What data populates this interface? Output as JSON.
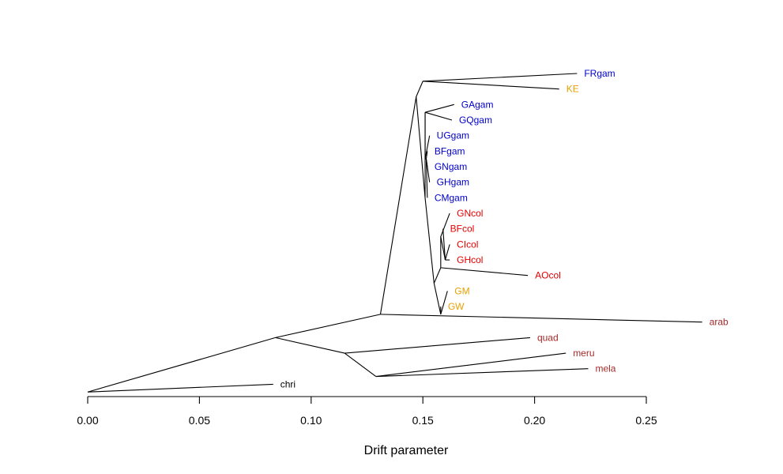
{
  "chart_data": {
    "type": "tree",
    "xlabel": "Drift parameter",
    "xlim": [
      0,
      0.25
    ],
    "xticks": [
      "0.00",
      "0.05",
      "0.10",
      "0.15",
      "0.20",
      "0.25"
    ],
    "tick_values": [
      0,
      0.05,
      0.1,
      0.15,
      0.2,
      0.25
    ],
    "colors": {
      "gambiae": "#0000cd",
      "coluzzii": "#e60000",
      "hybrid": "#e8a000",
      "outgroup": "#a52a2a",
      "root": "#000000"
    },
    "nodes": [
      {
        "id": "n_root",
        "x": 0.0,
        "row": 20.5
      },
      {
        "id": "n_b",
        "x": 0.084,
        "row": 17.0
      },
      {
        "id": "n_out1",
        "x": 0.115,
        "row": 18.0
      },
      {
        "id": "n_out2",
        "x": 0.129,
        "row": 19.5
      },
      {
        "id": "n_c",
        "x": 0.131,
        "row": 15.5
      },
      {
        "id": "n_d",
        "x": 0.147,
        "row": 1.5
      },
      {
        "id": "n_e",
        "x": 0.15,
        "row": 0.5
      },
      {
        "id": "n_f",
        "x": 0.151,
        "row": 8.0
      },
      {
        "id": "n_g",
        "x": 0.151,
        "row": 2.5
      },
      {
        "id": "n_g1",
        "x": 0.151,
        "row": 5.5
      },
      {
        "id": "n_gga",
        "x": 0.1515,
        "row": 5.5
      },
      {
        "id": "n_h",
        "x": 0.155,
        "row": 13.5
      },
      {
        "id": "n_hyb",
        "x": 0.158,
        "row": 15.5
      },
      {
        "id": "n_col",
        "x": 0.158,
        "row": 12.5
      },
      {
        "id": "n_col2",
        "x": 0.158,
        "row": 10.5
      },
      {
        "id": "n_col3",
        "x": 0.16,
        "row": 12.0
      }
    ],
    "edges": [
      {
        "from": "n_root",
        "to": "n_b"
      },
      {
        "from": "n_root",
        "to": "chri"
      },
      {
        "from": "n_b",
        "to": "n_c"
      },
      {
        "from": "n_b",
        "to": "n_out1"
      },
      {
        "from": "n_out1",
        "to": "quad"
      },
      {
        "from": "n_out1",
        "to": "n_out2"
      },
      {
        "from": "n_out2",
        "to": "meru"
      },
      {
        "from": "n_out2",
        "to": "mela"
      },
      {
        "from": "n_c",
        "to": "arab"
      },
      {
        "from": "n_c",
        "to": "n_d"
      },
      {
        "from": "n_d",
        "to": "n_e"
      },
      {
        "from": "n_e",
        "to": "FRgam"
      },
      {
        "from": "n_e",
        "to": "KE"
      },
      {
        "from": "n_d",
        "to": "n_f"
      },
      {
        "from": "n_f",
        "to": "n_g"
      },
      {
        "from": "n_g",
        "to": "GAgam"
      },
      {
        "from": "n_g",
        "to": "GQgam"
      },
      {
        "from": "n_g",
        "to": "n_g1"
      },
      {
        "from": "n_g1",
        "to": "UGgam"
      },
      {
        "from": "n_g1",
        "to": "n_gga"
      },
      {
        "from": "n_gga",
        "to": "BFgam"
      },
      {
        "from": "n_gga",
        "to": "GNgam"
      },
      {
        "from": "n_gga",
        "to": "GHgam"
      },
      {
        "from": "n_gga",
        "to": "CMgam"
      },
      {
        "from": "n_f",
        "to": "n_h"
      },
      {
        "from": "n_h",
        "to": "n_hyb"
      },
      {
        "from": "n_hyb",
        "to": "GM"
      },
      {
        "from": "n_hyb",
        "to": "GW"
      },
      {
        "from": "n_h",
        "to": "n_col"
      },
      {
        "from": "n_col",
        "to": "AOcol"
      },
      {
        "from": "n_col",
        "to": "n_col2"
      },
      {
        "from": "n_col2",
        "to": "GNcol"
      },
      {
        "from": "n_col2",
        "to": "n_col3"
      },
      {
        "from": "n_col3",
        "to": "BFcol"
      },
      {
        "from": "n_col3",
        "to": "CIcol"
      },
      {
        "from": "n_col3",
        "to": "GHcol"
      }
    ],
    "tips": [
      {
        "id": "FRgam",
        "label": "FRgam",
        "x": 0.219,
        "row": 0,
        "group": "gambiae"
      },
      {
        "id": "KE",
        "label": "KE",
        "x": 0.211,
        "row": 1,
        "group": "hybrid"
      },
      {
        "id": "GAgam",
        "label": "GAgam",
        "x": 0.164,
        "row": 2,
        "group": "gambiae"
      },
      {
        "id": "GQgam",
        "label": "GQgam",
        "x": 0.163,
        "row": 3,
        "group": "gambiae"
      },
      {
        "id": "UGgam",
        "label": "UGgam",
        "x": 0.153,
        "row": 4,
        "group": "gambiae"
      },
      {
        "id": "BFgam",
        "label": "BFgam",
        "x": 0.152,
        "row": 5,
        "group": "gambiae"
      },
      {
        "id": "GNgam",
        "label": "GNgam",
        "x": 0.152,
        "row": 6,
        "group": "gambiae"
      },
      {
        "id": "GHgam",
        "label": "GHgam",
        "x": 0.153,
        "row": 7,
        "group": "gambiae"
      },
      {
        "id": "CMgam",
        "label": "CMgam",
        "x": 0.152,
        "row": 8,
        "group": "gambiae"
      },
      {
        "id": "GNcol",
        "label": "GNcol",
        "x": 0.162,
        "row": 9,
        "group": "coluzzii"
      },
      {
        "id": "BFcol",
        "label": "BFcol",
        "x": 0.159,
        "row": 10,
        "group": "coluzzii"
      },
      {
        "id": "CIcol",
        "label": "CIcol",
        "x": 0.162,
        "row": 11,
        "group": "coluzzii"
      },
      {
        "id": "GHcol",
        "label": "GHcol",
        "x": 0.162,
        "row": 12,
        "group": "coluzzii"
      },
      {
        "id": "AOcol",
        "label": "AOcol",
        "x": 0.197,
        "row": 13,
        "group": "coluzzii"
      },
      {
        "id": "GM",
        "label": "GM",
        "x": 0.161,
        "row": 14,
        "group": "hybrid"
      },
      {
        "id": "GW",
        "label": "GW",
        "x": 0.158,
        "row": 15,
        "group": "hybrid"
      },
      {
        "id": "arab",
        "label": "arab",
        "x": 0.275,
        "row": 16,
        "group": "outgroup"
      },
      {
        "id": "quad",
        "label": "quad",
        "x": 0.198,
        "row": 17,
        "group": "outgroup"
      },
      {
        "id": "meru",
        "label": "meru",
        "x": 0.214,
        "row": 18,
        "group": "outgroup"
      },
      {
        "id": "mela",
        "label": "mela",
        "x": 0.224,
        "row": 19,
        "group": "outgroup"
      },
      {
        "id": "chri",
        "label": "chri",
        "x": 0.083,
        "row": 20,
        "group": "root"
      }
    ]
  }
}
